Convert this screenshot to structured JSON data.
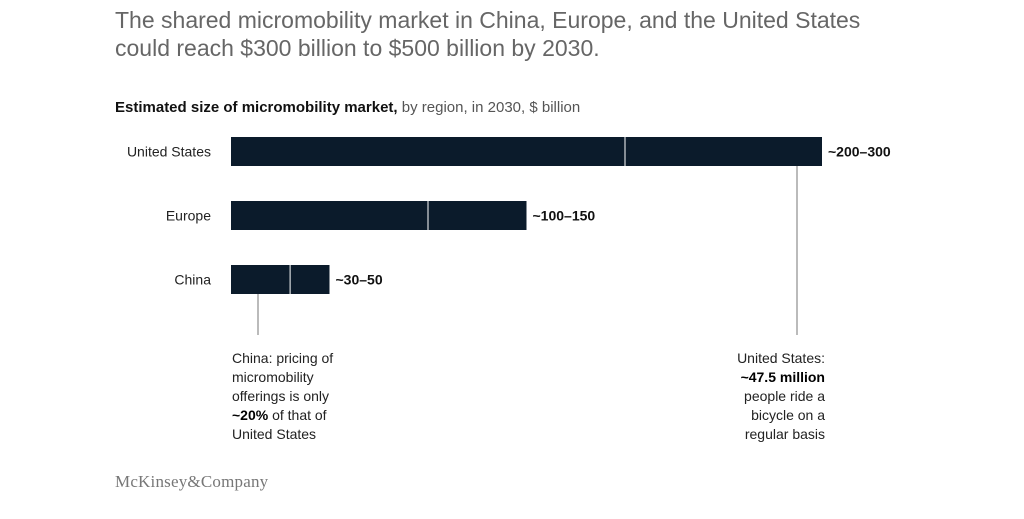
{
  "headline": "The shared micromobility market in China, Europe, and the United States could reach $300 billion to $500 billion by 2030.",
  "subtitle": {
    "bold": "Estimated size of micromobility market,",
    "rest": " by region, in 2030, $ billion"
  },
  "chart_data": {
    "type": "bar",
    "orientation": "horizontal",
    "categories": [
      "United States",
      "Europe",
      "China"
    ],
    "series": [
      {
        "values": [
          200,
          100,
          30
        ]
      },
      {
        "values": [
          100,
          50,
          20
        ]
      }
    ],
    "ranges": [
      [
        200,
        300
      ],
      [
        100,
        150
      ],
      [
        30,
        50
      ]
    ],
    "data_labels": [
      "~200–300",
      "~100–150",
      "~30–50"
    ],
    "xlim": [
      0,
      300
    ],
    "bar_color": "#0b1b2b",
    "divider_color": "#ffffff",
    "annotations": {
      "left": {
        "anchor": "China",
        "lines": [
          "China: pricing of",
          "micromobility",
          "offerings is only"
        ],
        "bold_part": "~20%",
        "after_bold": " of that of",
        "last_line": "United States"
      },
      "right": {
        "anchor": "United States",
        "first_line": "United States:",
        "bold_line": "~47.5 million",
        "lines": [
          "people ride a",
          "bicycle on a",
          "regular basis"
        ]
      }
    }
  },
  "logo": "McKinsey&Company"
}
